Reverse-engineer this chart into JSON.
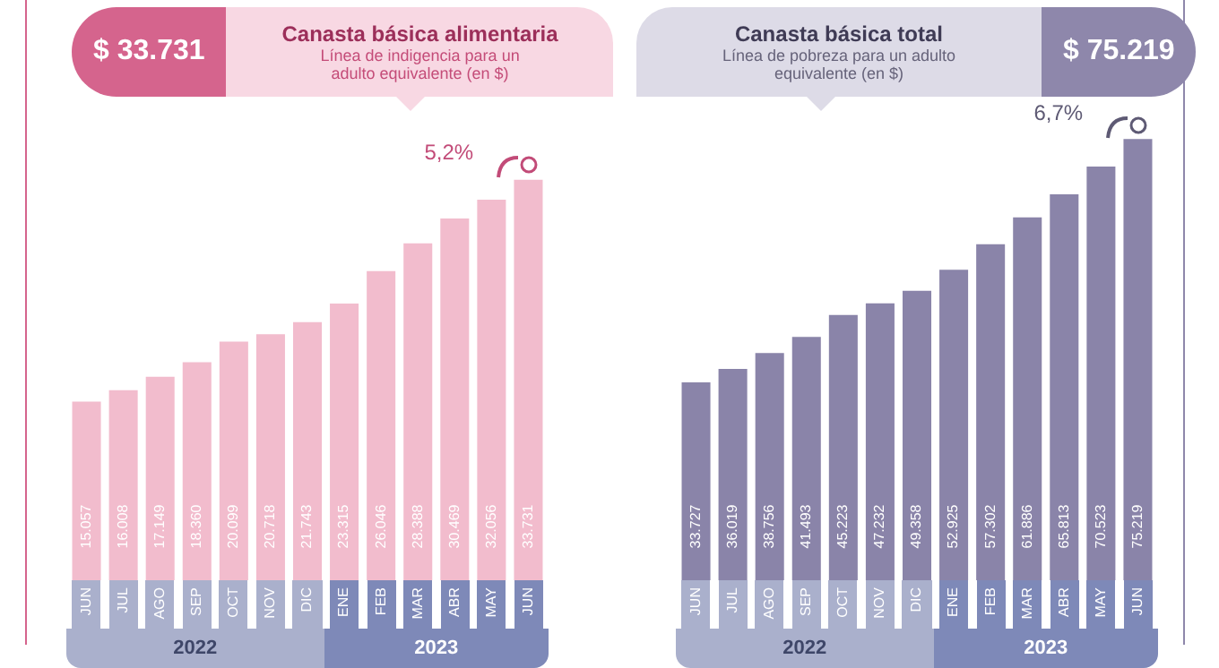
{
  "chart_data": [
    {
      "type": "bar",
      "title": "Canasta básica alimentaria",
      "subtitle": "Línea de indigencia para un adulto equivalente (en $)",
      "categories": [
        "JUN",
        "JUL",
        "AGO",
        "SEP",
        "OCT",
        "NOV",
        "DIC",
        "ENE",
        "FEB",
        "MAR",
        "ABR",
        "MAY",
        "JUN"
      ],
      "values": [
        15057,
        16008,
        17149,
        18360,
        20099,
        20718,
        21743,
        23315,
        26046,
        28388,
        30469,
        32056,
        33731
      ],
      "value_labels": [
        "15.057",
        "16.008",
        "17.149",
        "18.360",
        "20.099",
        "20.718",
        "21.743",
        "23.315",
        "26.046",
        "28.388",
        "30.469",
        "32.056",
        "33.731"
      ],
      "color": "#f2bccd",
      "tick_labels": "x",
      "grid": false,
      "legend": false,
      "annotations": [
        "$ 33.731",
        "5,2%",
        "2022",
        "2023"
      ]
    },
    {
      "type": "bar",
      "title": "Canasta básica total",
      "subtitle": "Línea de pobreza para un adulto equivalente (en $)",
      "categories": [
        "JUN",
        "JUL",
        "AGO",
        "SEP",
        "OCT",
        "NOV",
        "DIC",
        "ENE",
        "FEB",
        "MAR",
        "ABR",
        "MAY",
        "JUN"
      ],
      "values": [
        33727,
        36019,
        38756,
        41493,
        45223,
        47232,
        49358,
        52925,
        57302,
        61886,
        65813,
        70523,
        75219
      ],
      "value_labels": [
        "33.727",
        "36.019",
        "38.756",
        "41.493",
        "45.223",
        "47.232",
        "49.358",
        "52.925",
        "57.302",
        "61.886",
        "65.813",
        "70.523",
        "75.219"
      ],
      "color": "#8a84a9",
      "tick_labels": "x",
      "grid": false,
      "legend": false,
      "annotations": [
        "$ 75.219",
        "6,7%",
        "2022",
        "2023"
      ]
    }
  ]
}
